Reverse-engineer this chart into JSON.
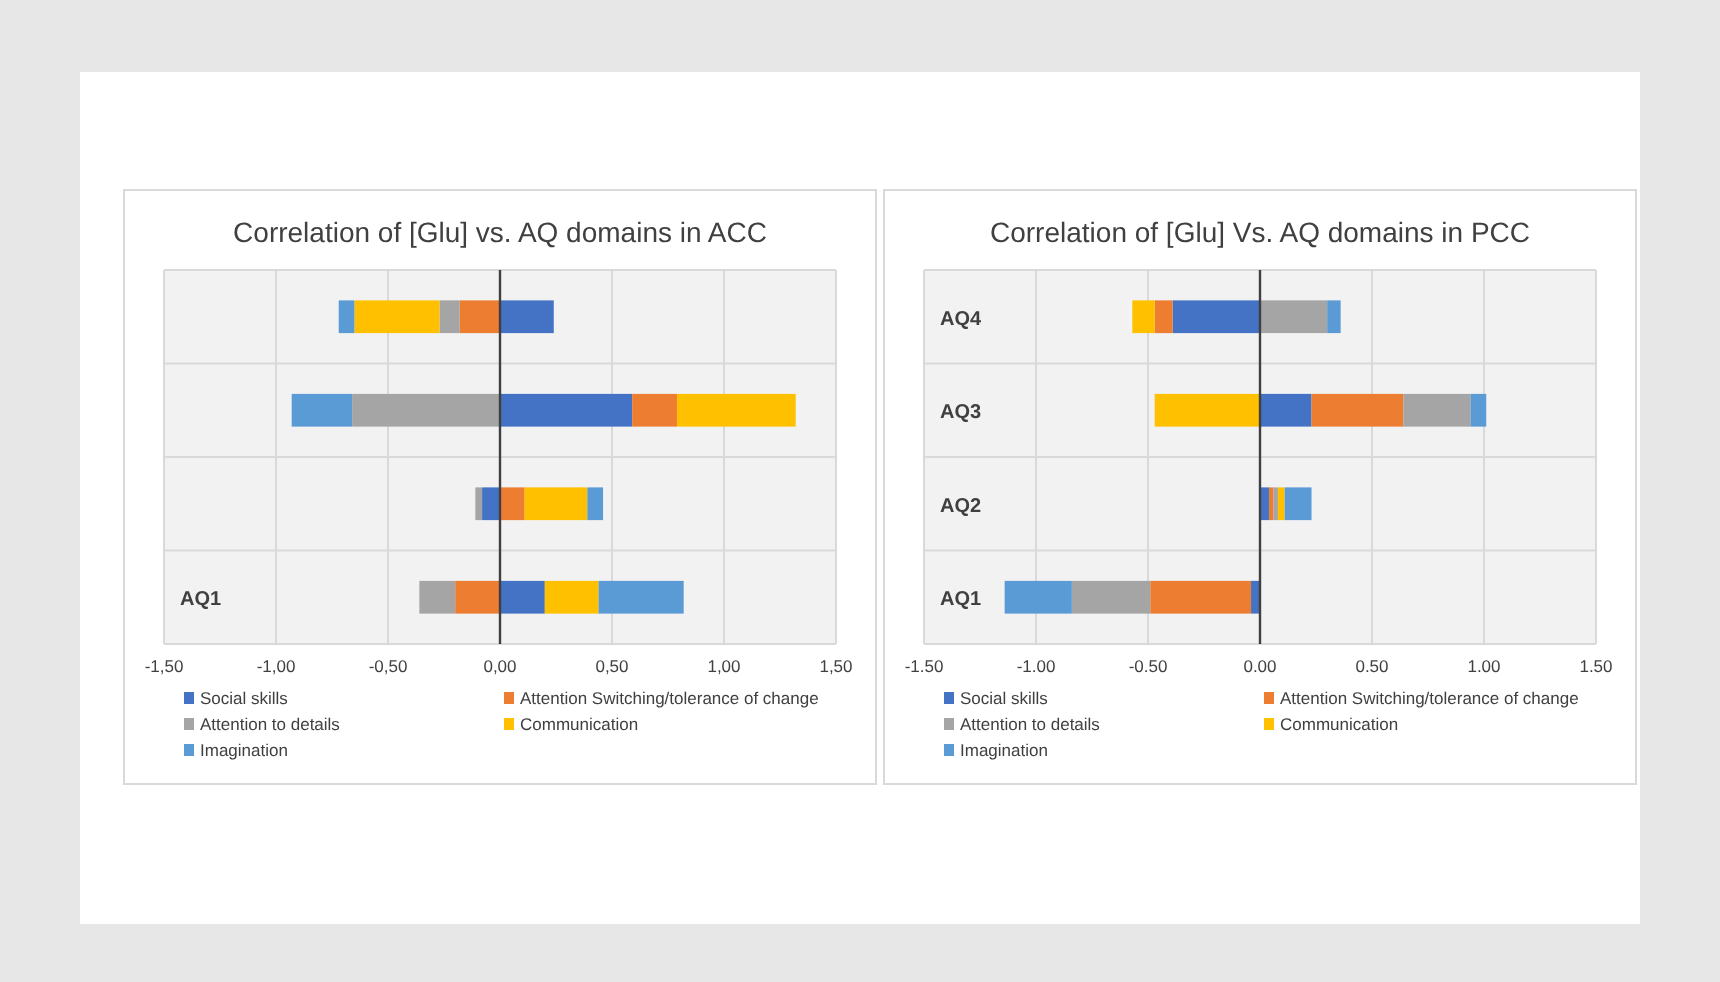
{
  "chart_data": [
    {
      "type": "bar",
      "orientation": "horizontal",
      "stacked": true,
      "title": "Correlation of [Glu] vs. AQ domains in ACC",
      "categories": [
        null,
        null,
        null,
        "AQ1"
      ],
      "series": [
        {
          "name": "Social skills",
          "color": "#4472c4",
          "values": [
            0.24,
            0.59,
            -0.08,
            0.2
          ]
        },
        {
          "name": "Attention Switching/tolerance of change",
          "color": "#ed7d31",
          "values": [
            -0.18,
            0.2,
            0.11,
            -0.2
          ]
        },
        {
          "name": "Attention to details",
          "color": "#a5a5a5",
          "values": [
            -0.09,
            -0.66,
            -0.03,
            -0.16
          ]
        },
        {
          "name": "Communication",
          "color": "#ffc000",
          "values": [
            -0.38,
            0.53,
            0.28,
            0.24
          ]
        },
        {
          "name": "Imagination",
          "color": "#5b9bd5",
          "values": [
            -0.07,
            -0.27,
            0.07,
            0.38
          ]
        }
      ],
      "xlim": [
        -1.5,
        1.5
      ],
      "xticks": [
        {
          "value": -1.5,
          "label": "-1,50"
        },
        {
          "value": -1,
          "label": "-1,00"
        },
        {
          "value": -0.5,
          "label": "-0,50"
        },
        {
          "value": 0,
          "label": "0,00"
        },
        {
          "value": 0.5,
          "label": "0,50"
        },
        {
          "value": 1,
          "label": "1,00"
        },
        {
          "value": 1.5,
          "label": "1,50"
        }
      ],
      "grid": true,
      "legend": "bottom"
    },
    {
      "type": "bar",
      "orientation": "horizontal",
      "stacked": true,
      "title": "Correlation of [Glu] Vs. AQ domains in PCC",
      "categories": [
        "AQ4",
        "AQ3",
        "AQ2",
        "AQ1"
      ],
      "series": [
        {
          "name": "Social skills",
          "color": "#4472c4",
          "values": [
            -0.39,
            0.23,
            0.04,
            -0.04
          ]
        },
        {
          "name": "Attention Switching/tolerance of change",
          "color": "#ed7d31",
          "values": [
            -0.08,
            0.41,
            0.02,
            -0.45
          ]
        },
        {
          "name": "Attention to details",
          "color": "#a5a5a5",
          "values": [
            0.3,
            0.3,
            0.02,
            -0.35
          ]
        },
        {
          "name": "Communication",
          "color": "#ffc000",
          "values": [
            -0.1,
            -0.47,
            0.03,
            null
          ]
        },
        {
          "name": "Imagination",
          "color": "#5b9bd5",
          "values": [
            0.06,
            0.07,
            0.12,
            -0.3
          ]
        }
      ],
      "xlim": [
        -1.5,
        1.5
      ],
      "xticks": [
        {
          "value": -1.5,
          "label": "-1.50"
        },
        {
          "value": -1,
          "label": "-1.00"
        },
        {
          "value": -0.5,
          "label": "-0.50"
        },
        {
          "value": 0,
          "label": "0.00"
        },
        {
          "value": 0.5,
          "label": "0.50"
        },
        {
          "value": 1,
          "label": "1.00"
        },
        {
          "value": 1.5,
          "label": "1.50"
        }
      ],
      "grid": true,
      "legend": "bottom"
    }
  ]
}
